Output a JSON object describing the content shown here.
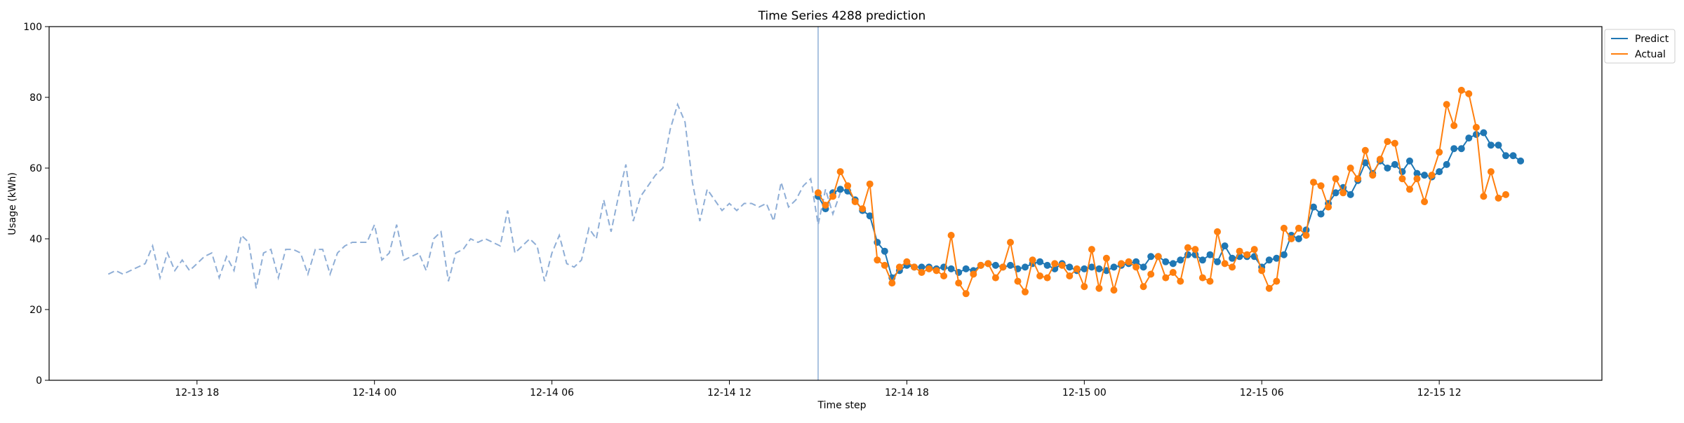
{
  "chart_data": {
    "type": "line",
    "title": "Time Series 4288 prediction",
    "xlabel": "Time step",
    "ylabel": "Usage (kWh)",
    "ylim": [
      0,
      100
    ],
    "xlim_hours": [
      -5.0,
      47.5
    ],
    "x_unit": "hours since 12-13 18:00",
    "y_ticks": [
      0,
      20,
      40,
      60,
      80,
      100
    ],
    "x_ticks": [
      {
        "hour": 0,
        "label": "12-13 18"
      },
      {
        "hour": 6,
        "label": "12-14 00"
      },
      {
        "hour": 12,
        "label": "12-14 06"
      },
      {
        "hour": 18,
        "label": "12-14 12"
      },
      {
        "hour": 24,
        "label": "12-14 18"
      },
      {
        "hour": 30,
        "label": "12-15 00"
      },
      {
        "hour": 36,
        "label": "12-15 06"
      },
      {
        "hour": 42,
        "label": "12-15 12"
      }
    ],
    "legend": {
      "placement": "top-right",
      "entries": [
        "Predict",
        "Actual"
      ]
    },
    "colors": {
      "history": "#8faed6",
      "predict": "#1f77b4",
      "actual": "#ff7f0e",
      "split": "#8faed6"
    },
    "split_hour": 21.0,
    "history": {
      "start_hour": -3.0,
      "step_hours": 0.25,
      "values": [
        30,
        31,
        30,
        31,
        32,
        33,
        38,
        29,
        36,
        31,
        34,
        31,
        33,
        35,
        36,
        29,
        35,
        31,
        41,
        39,
        26,
        36,
        37,
        29,
        37,
        37,
        36,
        30,
        37,
        37,
        30,
        36,
        38,
        39,
        39,
        39,
        44,
        34,
        36,
        44,
        34,
        35,
        36,
        31,
        40,
        42,
        28,
        36,
        37,
        40,
        39,
        40,
        39,
        38,
        48,
        36,
        38,
        40,
        38,
        28,
        36,
        41,
        33,
        32,
        34,
        43,
        40,
        51,
        42,
        52,
        61,
        45,
        52,
        55,
        58,
        60,
        71,
        78,
        73,
        56,
        45,
        54,
        51,
        48,
        50,
        48,
        50,
        50,
        49,
        50,
        45,
        56,
        49,
        51,
        55,
        57,
        44,
        54,
        47,
        53
      ]
    },
    "series": [
      {
        "name": "Predict",
        "start_hour": 21.0,
        "step_hours": 0.25,
        "values": [
          52,
          48.5,
          53,
          54,
          53.5,
          51,
          48,
          46.5,
          39,
          36.5,
          29,
          31,
          32.5,
          32,
          32,
          32,
          31.5,
          32,
          31.5,
          30.5,
          31.5,
          31,
          32.5,
          33,
          32.5,
          32,
          32.5,
          31.5,
          32,
          33,
          33.5,
          32.5,
          31.5,
          33,
          32,
          31,
          31.5,
          32,
          31.5,
          31,
          32,
          32.5,
          33,
          33.5,
          32,
          35,
          35,
          33.5,
          33,
          34,
          35.5,
          35.5,
          34,
          35.5,
          33.5,
          38,
          34.5,
          35,
          35,
          35,
          32,
          34,
          34.5,
          35.5,
          41,
          40,
          42.5,
          49,
          47,
          50,
          53,
          54.5,
          52.5,
          56.5,
          61.5,
          58.5,
          62,
          60,
          61,
          59,
          62,
          58.5,
          58,
          57.5,
          59,
          61,
          65.5,
          65.5,
          68.5,
          69.5,
          70,
          66.5,
          66.5,
          63.5,
          63.5,
          62
        ]
      },
      {
        "name": "Actual",
        "start_hour": 21.0,
        "step_hours": 0.25,
        "values": [
          53,
          49.5,
          52,
          59,
          55,
          50.5,
          48.5,
          55.5,
          34,
          32.5,
          27.5,
          32,
          33.5,
          32,
          30.5,
          31.5,
          31,
          29.5,
          41,
          27.5,
          24.5,
          30,
          32.5,
          33,
          29,
          32,
          39,
          28,
          25,
          34,
          29.5,
          29,
          33,
          32.5,
          29.5,
          31.5,
          26.5,
          37,
          26,
          34.5,
          25.5,
          33,
          33.5,
          32,
          26.5,
          30,
          35,
          29,
          30.5,
          28,
          37.5,
          37,
          29,
          28,
          42,
          33,
          32,
          36.5,
          35.5,
          37,
          31,
          26,
          28,
          43,
          40,
          43,
          41,
          56,
          55,
          49,
          57,
          53,
          60,
          57,
          65,
          58,
          62.5,
          67.5,
          67,
          57,
          54,
          57,
          50.5,
          58,
          64.5,
          78,
          72,
          82,
          81,
          71.5,
          52,
          59,
          51.5,
          52.5
        ]
      }
    ]
  }
}
